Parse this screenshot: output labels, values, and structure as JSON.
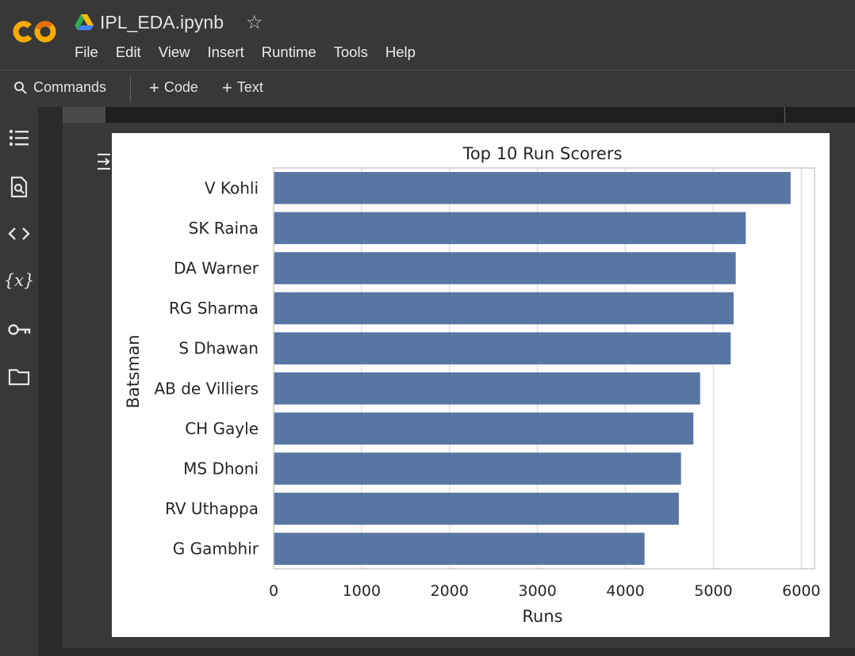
{
  "app": {
    "doc_title": "IPL_EDA.ipynb",
    "menu": [
      "File",
      "Edit",
      "View",
      "Insert",
      "Runtime",
      "Tools",
      "Help"
    ]
  },
  "toolbar": {
    "commands_label": "Commands",
    "add_code_label": "Code",
    "add_text_label": "Text"
  },
  "sidebar": {
    "icons": [
      "table-of-contents-icon",
      "find-replace-icon",
      "code-snippets-icon",
      "variables-icon",
      "secrets-key-icon",
      "files-folder-icon"
    ],
    "variables_glyph": "{x}"
  },
  "colors": {
    "bar": "#5975a4",
    "background": "#383838",
    "logo_orange": "#f9ab00",
    "logo_dark_orange": "#e8710a"
  },
  "chart_data": {
    "type": "bar",
    "orientation": "horizontal",
    "title": "Top 10 Run Scorers",
    "xlabel": "Runs",
    "ylabel": "Batsman",
    "xlim": [
      0,
      6150
    ],
    "xticks": [
      0,
      1000,
      2000,
      3000,
      4000,
      5000,
      6000
    ],
    "grid": "vertical",
    "categories": [
      "V Kohli",
      "SK Raina",
      "DA Warner",
      "RG Sharma",
      "S Dhawan",
      "AB de Villiers",
      "CH Gayle",
      "MS Dhoni",
      "RV Uthappa",
      "G Gambhir"
    ],
    "values": [
      5878,
      5368,
      5254,
      5230,
      5197,
      4849,
      4772,
      4632,
      4607,
      4217
    ]
  }
}
